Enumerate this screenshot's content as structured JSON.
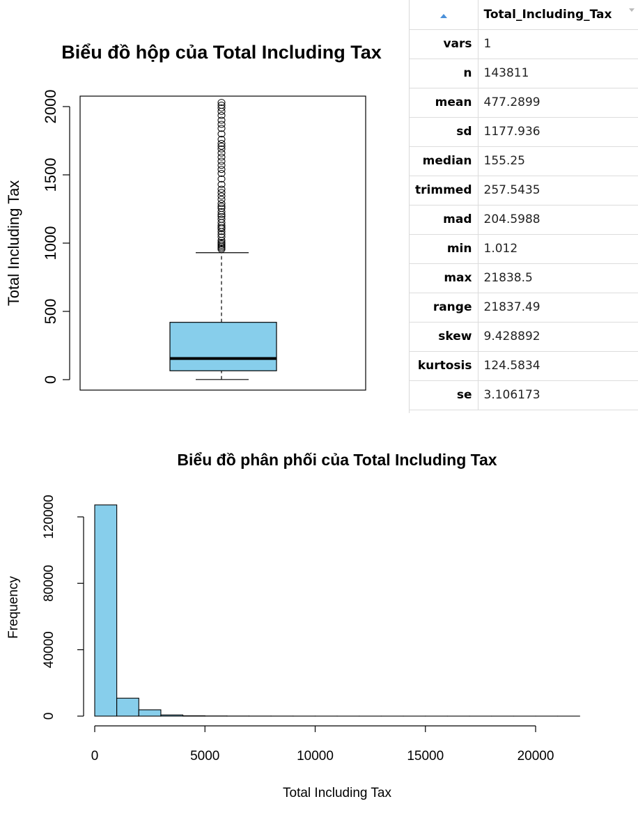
{
  "chart_data": [
    {
      "type": "box",
      "title": "Biểu đồ hộp của Total Including Tax",
      "ylabel": "Total Including Tax",
      "ylim": [
        0,
        2100
      ],
      "yticks": [
        0,
        500,
        1000,
        1500,
        2000
      ],
      "box": {
        "min": 1.0,
        "q1": 65,
        "median": 155.25,
        "q3": 420,
        "whisker_high": 930
      },
      "outliers": [
        955,
        965,
        975,
        985,
        995,
        1005,
        1020,
        1045,
        1065,
        1085,
        1105,
        1115,
        1130,
        1150,
        1175,
        1195,
        1210,
        1230,
        1255,
        1270,
        1290,
        1320,
        1345,
        1370,
        1395,
        1430,
        1470,
        1510,
        1540,
        1570,
        1600,
        1630,
        1660,
        1690,
        1710,
        1730,
        1760,
        1800,
        1840,
        1870,
        1900,
        1935,
        1965,
        1990,
        2010,
        2030
      ],
      "colors": {
        "fill": "#87CEEB",
        "stroke": "#000000"
      }
    },
    {
      "type": "histogram",
      "title": "Biểu đồ phân phối của Total Including Tax",
      "xlabel": "Total Including Tax",
      "ylabel": "Frequency",
      "xlim": [
        0,
        22000
      ],
      "ylim": [
        0,
        130000
      ],
      "xticks": [
        0,
        5000,
        10000,
        15000,
        20000
      ],
      "yticks": [
        0,
        40000,
        80000,
        120000
      ],
      "bin_width": 1000,
      "bins": [
        {
          "x0": 0,
          "x1": 1000,
          "count": 127200
        },
        {
          "x0": 1000,
          "x1": 2000,
          "count": 10800
        },
        {
          "x0": 2000,
          "x1": 3000,
          "count": 3800
        },
        {
          "x0": 3000,
          "x1": 4000,
          "count": 700
        },
        {
          "x0": 4000,
          "x1": 5000,
          "count": 200
        },
        {
          "x0": 5000,
          "x1": 6000,
          "count": 100
        },
        {
          "x0": 6000,
          "x1": 7000,
          "count": 60
        },
        {
          "x0": 7000,
          "x1": 8000,
          "count": 40
        },
        {
          "x0": 8000,
          "x1": 9000,
          "count": 30
        },
        {
          "x0": 9000,
          "x1": 10000,
          "count": 20
        },
        {
          "x0": 10000,
          "x1": 11000,
          "count": 15
        },
        {
          "x0": 11000,
          "x1": 12000,
          "count": 10
        },
        {
          "x0": 12000,
          "x1": 13000,
          "count": 8
        },
        {
          "x0": 13000,
          "x1": 14000,
          "count": 6
        },
        {
          "x0": 14000,
          "x1": 15000,
          "count": 5
        },
        {
          "x0": 15000,
          "x1": 16000,
          "count": 4
        },
        {
          "x0": 16000,
          "x1": 17000,
          "count": 3
        },
        {
          "x0": 17000,
          "x1": 18000,
          "count": 2
        },
        {
          "x0": 18000,
          "x1": 19000,
          "count": 2
        },
        {
          "x0": 19000,
          "x1": 20000,
          "count": 1
        },
        {
          "x0": 20000,
          "x1": 21000,
          "count": 1
        },
        {
          "x0": 21000,
          "x1": 22000,
          "count": 1
        }
      ],
      "colors": {
        "fill": "#87CEEB",
        "stroke": "#000000"
      }
    }
  ],
  "stats_table": {
    "column_header": "Total_Including_Tax",
    "rows": [
      {
        "name": "vars",
        "value": "1"
      },
      {
        "name": "n",
        "value": "143811"
      },
      {
        "name": "mean",
        "value": "477.2899"
      },
      {
        "name": "sd",
        "value": "1177.936"
      },
      {
        "name": "median",
        "value": "155.25"
      },
      {
        "name": "trimmed",
        "value": "257.5435"
      },
      {
        "name": "mad",
        "value": "204.5988"
      },
      {
        "name": "min",
        "value": "1.012"
      },
      {
        "name": "max",
        "value": "21838.5"
      },
      {
        "name": "range",
        "value": "21837.49"
      },
      {
        "name": "skew",
        "value": "9.428892"
      },
      {
        "name": "kurtosis",
        "value": "124.5834"
      },
      {
        "name": "se",
        "value": "3.106173"
      }
    ]
  }
}
